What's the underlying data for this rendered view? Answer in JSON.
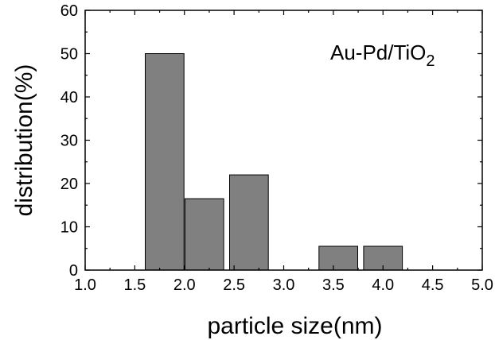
{
  "chart_data": {
    "type": "bar",
    "x": [
      1.8,
      2.2,
      2.65,
      3.55,
      4.0
    ],
    "values": [
      50,
      16.5,
      22,
      5.5,
      5.5
    ],
    "xlabel": "particle size(nm)",
    "ylabel": "distribution(%)",
    "xlim": [
      1.0,
      5.0
    ],
    "ylim": [
      0,
      60
    ],
    "xticks": [
      "1.0",
      "1.5",
      "2.0",
      "2.5",
      "3.0",
      "3.5",
      "4.0",
      "4.5",
      "5.0"
    ],
    "yticks": [
      "0",
      "10",
      "20",
      "30",
      "40",
      "50",
      "60"
    ],
    "annotation_main": "Au-Pd/TiO",
    "annotation_sub": "2",
    "bar_color": "#808080",
    "grid": false
  }
}
